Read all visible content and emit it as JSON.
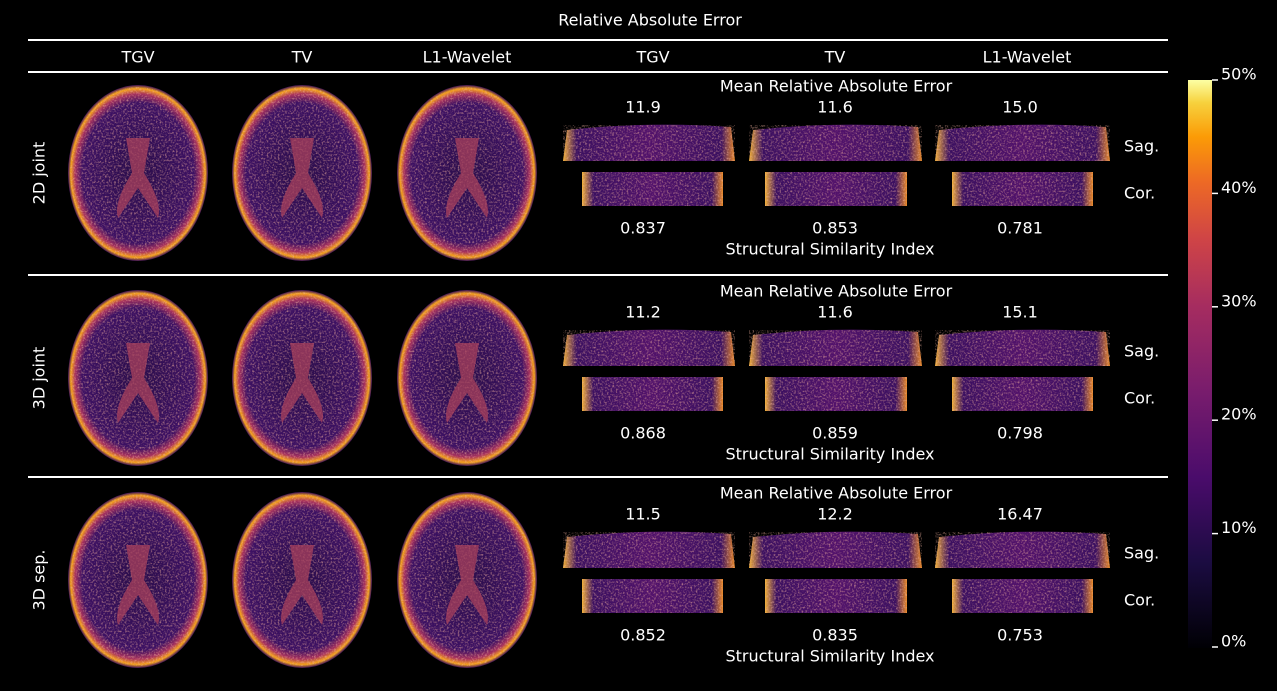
{
  "title": "Relative Absolute Error",
  "columns": [
    "TGV",
    "TV",
    "L1-Wavelet",
    "TGV",
    "TV",
    "L1-Wavelet"
  ],
  "rows": [
    {
      "label": "2D joint",
      "mrae_label": "Mean Relative Absolute Error",
      "mrae": [
        "11.9",
        "11.6",
        "15.0"
      ],
      "ssim": [
        "0.837",
        "0.853",
        "0.781"
      ],
      "ssim_label": "Structural Similarity Index",
      "sag": "Sag.",
      "cor": "Cor."
    },
    {
      "label": "3D joint",
      "mrae_label": "Mean Relative Absolute Error",
      "mrae": [
        "11.2",
        "11.6",
        "15.1"
      ],
      "ssim": [
        "0.868",
        "0.859",
        "0.798"
      ],
      "ssim_label": "Structural Similarity Index",
      "sag": "Sag.",
      "cor": "Cor."
    },
    {
      "label": "3D sep.",
      "mrae_label": "Mean Relative Absolute Error",
      "mrae": [
        "11.5",
        "12.2",
        "16.47"
      ],
      "ssim": [
        "0.852",
        "0.835",
        "0.753"
      ],
      "ssim_label": "Structural Similarity Index",
      "sag": "Sag.",
      "cor": "Cor."
    }
  ],
  "colorbar": {
    "ticks": [
      "0%",
      "10%",
      "20%",
      "30%",
      "40%",
      "50%"
    ]
  }
}
